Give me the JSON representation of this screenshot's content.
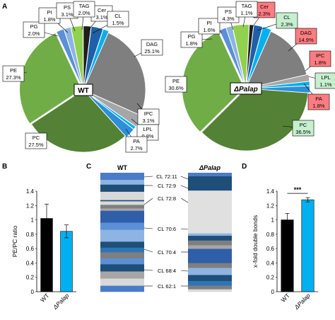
{
  "panel_letters": [
    "A",
    "B",
    "C",
    "D"
  ],
  "colors": {
    "PG": "#5b8fd6",
    "PI": "#8db4e2",
    "PS": "#92d050",
    "TAG": "#1f1f1f",
    "Cer": "#1f5fa8",
    "CL": "#00b0f0",
    "DAG": "#7f7f7f",
    "IPC": "#a6a6a6",
    "LPL": "#00b0f0",
    "PA": "#2e8fd8",
    "PC": "#538135",
    "PE": "#70ad47",
    "wt_bar": "#000000",
    "mut_bar": "#00b0f0",
    "highlight_up": "#c6efce",
    "highlight_down": "#ff7c80"
  },
  "chart_data": [
    {
      "type": "pie",
      "panel": "A",
      "center_label": "WT",
      "slices": [
        {
          "name": "Cer",
          "value": 3.1
        },
        {
          "name": "CL",
          "value": 1.5
        },
        {
          "name": "DAG",
          "value": 25.1
        },
        {
          "name": "IPC",
          "value": 3.1
        },
        {
          "name": "LPL",
          "value": 0.8
        },
        {
          "name": "PA",
          "value": 2.7
        },
        {
          "name": "PC",
          "value": 27.5
        },
        {
          "name": "PE",
          "value": 27.3
        },
        {
          "name": "PG",
          "value": 2.0
        },
        {
          "name": "PI",
          "value": 1.8
        },
        {
          "name": "PS",
          "value": 3.1
        },
        {
          "name": "TAG",
          "value": 2.0
        }
      ],
      "labels": [
        {
          "name": "Cer",
          "text1": "Cer",
          "text2": "3.1%"
        },
        {
          "name": "CL",
          "text1": "CL",
          "text2": "1.5%"
        },
        {
          "name": "DAG",
          "text1": "DAG",
          "text2": "25.1%"
        },
        {
          "name": "IPC",
          "text1": "IPC",
          "text2": "3.1%"
        },
        {
          "name": "LPL",
          "text1": "LPL",
          "text2": "0.8%"
        },
        {
          "name": "PA",
          "text1": "PA",
          "text2": "2.7%"
        },
        {
          "name": "PC",
          "text1": "PC",
          "text2": "27.5%"
        },
        {
          "name": "PE",
          "text1": "PE",
          "text2": "27.3%"
        },
        {
          "name": "PG",
          "text1": "PG",
          "text2": "2.0%"
        },
        {
          "name": "PI",
          "text1": "PI",
          "text2": "1.8%"
        },
        {
          "name": "PS",
          "text1": "PS",
          "text2": "3.1%"
        },
        {
          "name": "TAG",
          "text1": "TAG",
          "text2": "2.0%"
        }
      ]
    },
    {
      "type": "pie",
      "panel": "A",
      "center_label": "ΔPalap",
      "slices": [
        {
          "name": "Cer",
          "value": 2.3
        },
        {
          "name": "CL",
          "value": 2.3
        },
        {
          "name": "DAG",
          "value": 14.9
        },
        {
          "name": "IPC",
          "value": 1.8
        },
        {
          "name": "LPL",
          "value": 1.1
        },
        {
          "name": "PA",
          "value": 1.8
        },
        {
          "name": "PC",
          "value": 36.5
        },
        {
          "name": "PE",
          "value": 30.6
        },
        {
          "name": "PG",
          "value": 1.8
        },
        {
          "name": "PI",
          "value": 1.6
        },
        {
          "name": "PS",
          "value": 4.3
        },
        {
          "name": "TAG",
          "value": 1.1
        }
      ],
      "labels": [
        {
          "name": "Cer",
          "text1": "Cer",
          "text2": "2.3%",
          "highlight": "down"
        },
        {
          "name": "CL",
          "text1": "CL",
          "text2": "2.3%",
          "highlight": "up"
        },
        {
          "name": "DAG",
          "text1": "DAG",
          "text2": "14.9%",
          "highlight": "down"
        },
        {
          "name": "IPC",
          "text1": "IPC",
          "text2": "1.8%",
          "highlight": "down"
        },
        {
          "name": "LPL",
          "text1": "LPL",
          "text2": "1.1%",
          "highlight": "up"
        },
        {
          "name": "PA",
          "text1": "PA",
          "text2": "1.8%",
          "highlight": "down"
        },
        {
          "name": "PC",
          "text1": "PC",
          "text2": "36.5%",
          "highlight": "up"
        },
        {
          "name": "PE",
          "text1": "PE",
          "text2": "30.6%"
        },
        {
          "name": "PG",
          "text1": "PG",
          "text2": "1.8%"
        },
        {
          "name": "PI",
          "text1": "PI",
          "text2": "1.6%"
        },
        {
          "name": "PS",
          "text1": "PS",
          "text2": "4.3%"
        },
        {
          "name": "TAG",
          "text1": "TAG",
          "text2": "1.1%"
        }
      ]
    },
    {
      "type": "bar",
      "panel": "B",
      "categories": [
        "WT",
        "ΔPalap"
      ],
      "values": [
        1.02,
        0.84
      ],
      "errors": [
        0.2,
        0.09
      ],
      "ylabel": "PE/PC ratio",
      "ylim": [
        0,
        1.4
      ],
      "yticks": [
        "0",
        "0.2",
        "0.4",
        "0.6",
        "0.8",
        "1",
        "1.2",
        "1.4"
      ]
    },
    {
      "type": "heatmap",
      "panel": "C",
      "columns": [
        "WT",
        "ΔPalap"
      ],
      "annotations": [
        "CL 72:11",
        "CL 72:9",
        "CL 72:8",
        "CL 70:6",
        "CL 70:4",
        "CL 68:4",
        "CL 62:1"
      ],
      "rows_wt": [
        {
          "share": 6,
          "color": "#4a7cc6"
        },
        {
          "share": 4,
          "color": "#8db4e2"
        },
        {
          "share": 6,
          "color": "#1f4e79"
        },
        {
          "share": 7,
          "color": "#d9d9d9"
        },
        {
          "share": 1,
          "color": "#1f4e79"
        },
        {
          "share": 3,
          "color": "#d9d9d9"
        },
        {
          "share": 3,
          "color": "#7f7f7f"
        },
        {
          "share": 2,
          "color": "#a6a6a6"
        },
        {
          "share": 10,
          "color": "#2e5fa8"
        },
        {
          "share": 6,
          "color": "#5b8fd6"
        },
        {
          "share": 10,
          "color": "#8db4e2"
        },
        {
          "share": 5,
          "color": "#1f4e79"
        },
        {
          "share": 4,
          "color": "#2e75b6"
        },
        {
          "share": 5,
          "color": "#7f7f7f"
        },
        {
          "share": 5,
          "color": "#5b8fd6"
        },
        {
          "share": 6,
          "color": "#1f4e79"
        },
        {
          "share": 6,
          "color": "#a6a6a6"
        },
        {
          "share": 6,
          "color": "#d9d9d9"
        },
        {
          "share": 5,
          "color": "#4a7cc6"
        }
      ],
      "rows_mut": [
        {
          "share": 3,
          "color": "#4a7cc6"
        },
        {
          "share": 12,
          "color": "#1f4e79"
        },
        {
          "share": 36,
          "color": "#e0e0e0"
        },
        {
          "share": 2,
          "color": "#8db4e2"
        },
        {
          "share": 4,
          "color": "#1f4e79"
        },
        {
          "share": 4,
          "color": "#7f7f7f"
        },
        {
          "share": 3,
          "color": "#a6a6a6"
        },
        {
          "share": 12,
          "color": "#2e5fa8"
        },
        {
          "share": 4,
          "color": "#7f7f7f"
        },
        {
          "share": 6,
          "color": "#8db4e2"
        },
        {
          "share": 5,
          "color": "#1f4e79"
        },
        {
          "share": 4,
          "color": "#2e75b6"
        },
        {
          "share": 3,
          "color": "#7f7f7f"
        },
        {
          "share": 2,
          "color": "#d9d9d9"
        }
      ]
    },
    {
      "type": "bar",
      "panel": "D",
      "categories": [
        "WT",
        "ΔPalap"
      ],
      "values": [
        1.0,
        1.28
      ],
      "errors": [
        0.09,
        0.03
      ],
      "ylabel": "x-fold double bonds",
      "ylim": [
        0,
        1.4
      ],
      "yticks": [
        "0",
        "0.2",
        "0.4",
        "0.6",
        "0.8",
        "1",
        "1.2",
        "1.4"
      ],
      "significance": "***"
    }
  ]
}
